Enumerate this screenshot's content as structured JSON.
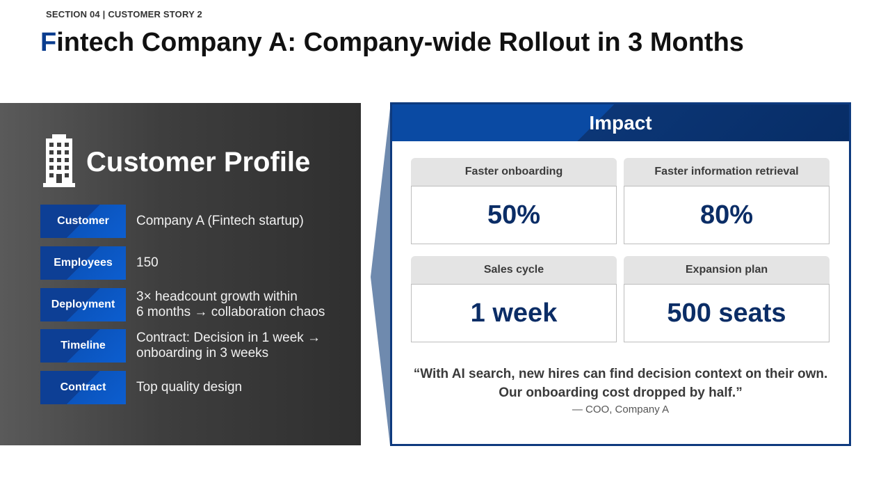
{
  "header": {
    "section_label": "SECTION 04 | CUSTOMER STORY 2",
    "title_initial": "F",
    "title_rest": "intech Company A: Company-wide Rollout in 3 Months"
  },
  "profile": {
    "icon": "building-icon",
    "title": "Customer Profile",
    "rows": [
      {
        "label": "Customer",
        "value": "Company A (Fintech startup)"
      },
      {
        "label": "Employees",
        "value": "150"
      },
      {
        "label": "Deployment",
        "value": "3× headcount growth within\n6 months → collaboration chaos"
      },
      {
        "label": "Timeline",
        "value": "Contract: Decision in 1 week →\nonboarding in 3 weeks"
      },
      {
        "label": "Contract",
        "value": "Top quality design"
      }
    ]
  },
  "impact": {
    "title": "Impact",
    "metrics": [
      {
        "label": "Faster onboarding",
        "value": "50%"
      },
      {
        "label": "Faster information retrieval",
        "value": "80%"
      },
      {
        "label": "Sales cycle",
        "value": "1 week"
      },
      {
        "label": "Expansion plan",
        "value": "500 seats"
      }
    ],
    "quote": "“With AI search, new hires can find decision context on their own.\nOur onboarding cost dropped by half.”",
    "attribution": "— COO, Company A"
  },
  "colors": {
    "accent": "#0a3d8f",
    "panel_dark": "#3e3e3e",
    "badge_blue": "#0c5ed0",
    "impact_navy": "#0e3a7e",
    "metric_value": "#0b2d66"
  }
}
